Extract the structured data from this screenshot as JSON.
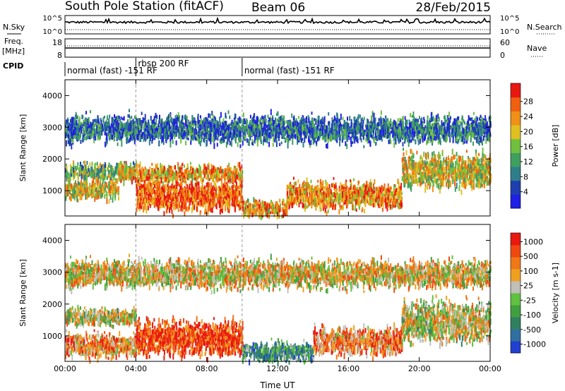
{
  "header": {
    "station": "South Pole Station (fitACF)",
    "beam": "Beam 06",
    "date": "28/Feb/2015"
  },
  "strip": {
    "nsky_label": "N.Sky",
    "nsky_ticks": [
      "10^5",
      "10^0"
    ],
    "nsearch_label": "N.Search",
    "nsearch_ticks": [
      "10^5",
      "10^0"
    ],
    "freq_label_1": "Freq.",
    "freq_label_2": "[MHz]",
    "freq_ticks": [
      "18",
      "8"
    ],
    "nave_label": "Nave",
    "nave_ticks": [
      "60",
      "0"
    ],
    "cpid_label": "CPID"
  },
  "cpid_segments": [
    {
      "start_h": 0,
      "end_h": 4.0,
      "label": "normal (fast) -151 RF"
    },
    {
      "start_h": 4.0,
      "end_h": 10.0,
      "label": "rbsp 200 RF"
    },
    {
      "start_h": 10.0,
      "end_h": 24.0,
      "label": "normal (fast) -151 RF"
    }
  ],
  "chart_data": [
    {
      "type": "heatmap",
      "panel": "power",
      "ylabel": "Slant Range [km]",
      "ylim": [
        200,
        4500
      ],
      "yticks": [
        1000,
        2000,
        3000,
        4000
      ],
      "xlim": [
        0,
        24
      ],
      "xticks": [
        "00:00",
        "04:00",
        "08:00",
        "12:00",
        "16:00",
        "20:00",
        "00:00"
      ],
      "colorbar": {
        "label": "Power [dB]",
        "ticks": [
          "4",
          "8",
          "12",
          "16",
          "20",
          "24",
          "28"
        ],
        "colors": [
          "#1f1fe6",
          "#1f3fb0",
          "#2f7f8a",
          "#3f9f5f",
          "#70c040",
          "#e0c020",
          "#f09018",
          "#f06010",
          "#e81810"
        ]
      },
      "echo_bands": [
        {
          "start_h": 0.0,
          "end_h": 4.0,
          "center_km": 1650,
          "width_km": 250,
          "level": 0.45
        },
        {
          "start_h": 0.0,
          "end_h": 3.0,
          "center_km": 1100,
          "width_km": 300,
          "level": 0.6
        },
        {
          "start_h": 3.0,
          "end_h": 10.0,
          "center_km": 1600,
          "width_km": 250,
          "level": 0.7
        },
        {
          "start_h": 4.0,
          "end_h": 10.0,
          "center_km": 900,
          "width_km": 450,
          "level": 0.85
        },
        {
          "start_h": 10.0,
          "end_h": 12.5,
          "center_km": 500,
          "width_km": 250,
          "level": 0.7
        },
        {
          "start_h": 12.5,
          "end_h": 19.0,
          "center_km": 900,
          "width_km": 400,
          "level": 0.75
        },
        {
          "start_h": 19.0,
          "end_h": 24.0,
          "center_km": 1700,
          "width_km": 500,
          "level": 0.6
        },
        {
          "start_h": 0.0,
          "end_h": 24.0,
          "center_km": 3000,
          "width_km": 400,
          "level": 0.25
        }
      ]
    },
    {
      "type": "heatmap",
      "panel": "velocity",
      "ylabel": "Slant Range [km]",
      "xlabel": "Time UT",
      "ylim": [
        200,
        4500
      ],
      "yticks": [
        1000,
        2000,
        3000,
        4000
      ],
      "xlim": [
        0,
        24
      ],
      "xticks": [
        "00:00",
        "04:00",
        "08:00",
        "12:00",
        "16:00",
        "20:00",
        "00:00"
      ],
      "colorbar": {
        "label": "Velocity [m s-1]",
        "ticks": [
          "1000",
          "500",
          "100",
          "25",
          "-25",
          "-100",
          "-500",
          "-1000"
        ],
        "colors": [
          "#2040d0",
          "#3070a0",
          "#308060",
          "#40a040",
          "#60c040",
          "#c0c0b8",
          "#f0a020",
          "#f07818",
          "#f04810",
          "#e81810"
        ]
      },
      "echo_bands": [
        {
          "start_h": 0.0,
          "end_h": 4.0,
          "center_km": 1650,
          "width_km": 250,
          "level": 0.55
        },
        {
          "start_h": 0.0,
          "end_h": 4.0,
          "center_km": 750,
          "width_km": 350,
          "level": 0.72
        },
        {
          "start_h": 4.0,
          "end_h": 10.0,
          "center_km": 1000,
          "width_km": 500,
          "level": 0.9
        },
        {
          "start_h": 10.0,
          "end_h": 14.0,
          "center_km": 550,
          "width_km": 300,
          "level": 0.3
        },
        {
          "start_h": 14.0,
          "end_h": 19.0,
          "center_km": 900,
          "width_km": 400,
          "level": 0.75
        },
        {
          "start_h": 19.0,
          "end_h": 24.0,
          "center_km": 1500,
          "width_km": 600,
          "level": 0.55
        },
        {
          "start_h": 0.0,
          "end_h": 24.0,
          "center_km": 3000,
          "width_km": 400,
          "level": 0.6
        }
      ]
    }
  ]
}
